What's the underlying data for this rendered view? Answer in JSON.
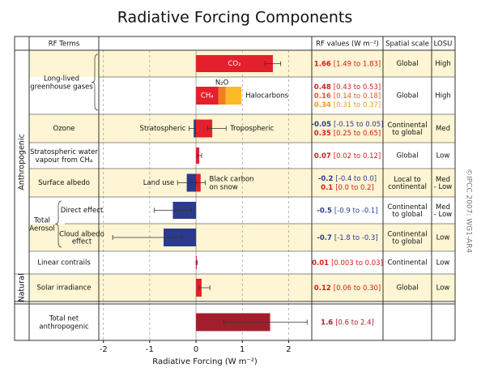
{
  "chart_data": {
    "type": "bar",
    "orientation": "horizontal",
    "title": "Radiative Forcing Components",
    "headers": {
      "terms": "RF Terms",
      "values": "RF values (W m⁻²)",
      "scale": "Spatial scale",
      "losu": "LOSU"
    },
    "x_label": "Radiative Forcing (W m⁻²)",
    "xlim": [
      -2.1,
      2.5
    ],
    "xticks": [
      -2,
      -1,
      0,
      1,
      2
    ],
    "grid": true,
    "copyright": "©IPCC 2007: WG1-AR4",
    "groups": [
      {
        "name": "Anthropogenic",
        "rows": [
          {
            "label": [
              "Long-lived",
              "greenhouse gases"
            ],
            "subrows": [
              {
                "components": [
                  {
                    "name": "CO₂",
                    "label_pos": "inside",
                    "value": 1.66,
                    "range": [
                      1.49,
                      1.83
                    ],
                    "range_label": "[1.49 to 1.83]",
                    "color": "#e3202b",
                    "text_color": "#d7191c"
                  }
                ],
                "scale": "Global",
                "losu": "High"
              },
              {
                "components": [
                  {
                    "name": "CH₄",
                    "label_pos": "inside",
                    "value": 0.48,
                    "range": [
                      0.43,
                      0.53
                    ],
                    "range_label": "[0.43 to 0.53]",
                    "color": "#e3202b",
                    "text_color": "#d7191c"
                  },
                  {
                    "name": "N₂O",
                    "label_pos": "above",
                    "value": 0.16,
                    "range": [
                      0.14,
                      0.18
                    ],
                    "range_label": "[0.14 to 0.18]",
                    "color": "#ef7d22",
                    "text_color": "#e4571f"
                  },
                  {
                    "name": "Halocarbons",
                    "label_pos": "right",
                    "value": 0.34,
                    "range": [
                      0.31,
                      0.37
                    ],
                    "range_label": "[0.31 to 0.37]",
                    "color": "#fbb928",
                    "text_color": "#ee9c1a"
                  }
                ],
                "scale": "Global",
                "losu": "High"
              }
            ]
          },
          {
            "label": "Ozone",
            "components": [
              {
                "name": "Stratospheric",
                "label_pos": "left",
                "value": -0.05,
                "range": [
                  -0.15,
                  0.05
                ],
                "range_label": "[-0.15 to 0.05]",
                "color": "#2b3a8f",
                "text_color": "#2b3a8f"
              },
              {
                "name": "Tropospheric",
                "label_pos": "right",
                "value": 0.35,
                "range": [
                  0.25,
                  0.65
                ],
                "range_label": "[0.25 to 0.65]",
                "color": "#e3202b",
                "text_color": "#d7191c"
              }
            ],
            "scale": [
              "Continental",
              "to global"
            ],
            "losu": "Med"
          },
          {
            "label": [
              "Stratospheric water",
              "vapour from CH₄"
            ],
            "components": [
              {
                "value": 0.07,
                "range": [
                  0.02,
                  0.12
                ],
                "range_label": "[0.02 to 0.12]",
                "color": "#e3202b",
                "text_color": "#d7191c"
              }
            ],
            "scale": "Global",
            "losu": "Low"
          },
          {
            "label": "Surface albedo",
            "components": [
              {
                "name": "Land use",
                "label_pos": "left",
                "value": -0.2,
                "range": [
                  -0.4,
                  0.0
                ],
                "range_label": "[-0.4 to 0.0]",
                "color": "#2b3a8f",
                "text_color": "#2b3a8f"
              },
              {
                "name": [
                  "Black carbon",
                  "on snow"
                ],
                "label_pos": "right",
                "value": 0.1,
                "range": [
                  0.0,
                  0.2
                ],
                "range_label": "[0.0 to 0.2]",
                "color": "#e3202b",
                "text_color": "#d7191c"
              }
            ],
            "scale": [
              "Local to",
              "continental"
            ],
            "losu": [
              "Med",
              "- Low"
            ]
          },
          {
            "label": [
              "Total",
              "Aerosol"
            ],
            "subrows": [
              {
                "label": "Direct effect",
                "components": [
                  {
                    "value": -0.5,
                    "range": [
                      -0.9,
                      -0.1
                    ],
                    "range_label": "[-0.9 to -0.1]",
                    "color": "#2b3a8f",
                    "text_color": "#2b3a8f"
                  }
                ],
                "scale": [
                  "Continental",
                  "to global"
                ],
                "losu": [
                  "Med",
                  "- Low"
                ]
              },
              {
                "label": [
                  "Cloud albedo",
                  "effect"
                ],
                "components": [
                  {
                    "value": -0.7,
                    "range": [
                      -1.8,
                      -0.3
                    ],
                    "range_label": "[-1.8 to -0.3]",
                    "color": "#2b3a8f",
                    "text_color": "#2b3a8f"
                  }
                ],
                "scale": [
                  "Continental",
                  "to global"
                ],
                "losu": "Low"
              }
            ]
          },
          {
            "label": "Linear contrails",
            "components": [
              {
                "value": 0.01,
                "range": [
                  0.003,
                  0.03
                ],
                "range_label": "[0.003 to 0.03]",
                "color": "#e3202b",
                "text_color": "#d7191c"
              }
            ],
            "scale": "Continental",
            "losu": "Low"
          }
        ]
      },
      {
        "name": "Natural",
        "rows": [
          {
            "label": "Solar irradiance",
            "components": [
              {
                "value": 0.12,
                "range": [
                  0.06,
                  0.3
                ],
                "range_label": "[0.06 to 0.30]",
                "color": "#e3202b",
                "text_color": "#d7191c"
              }
            ],
            "scale": "Global",
            "losu": "Low"
          }
        ]
      }
    ],
    "total": {
      "label": [
        "Total net",
        "anthropogenic"
      ],
      "components": [
        {
          "value": 1.6,
          "range": [
            0.6,
            2.4
          ],
          "range_label": "[0.6 to 2.4]",
          "color": "#a31e2c",
          "text_color": "#a31e2c"
        }
      ]
    }
  }
}
